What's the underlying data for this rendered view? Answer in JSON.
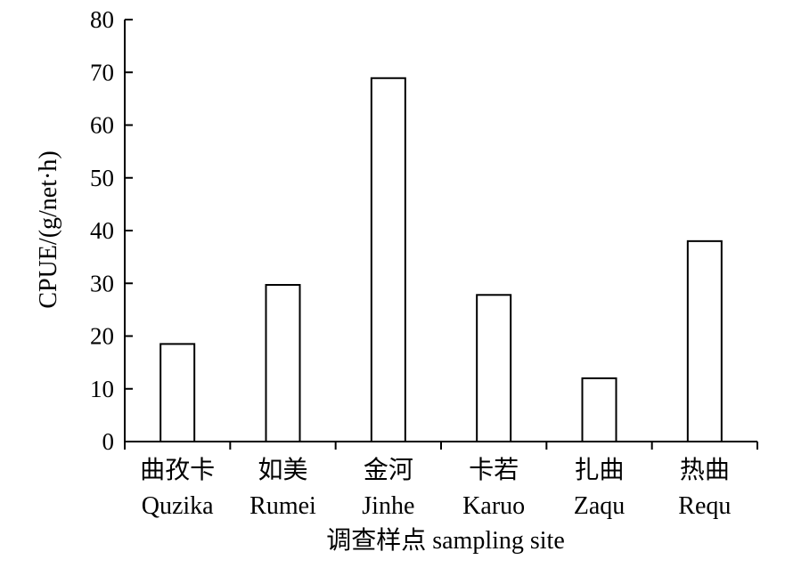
{
  "chart_data": {
    "type": "bar",
    "categories": [
      {
        "zh": "曲孜卡",
        "en": "Quzika"
      },
      {
        "zh": "如美",
        "en": "Rumei"
      },
      {
        "zh": "金河",
        "en": "Jinhe"
      },
      {
        "zh": "卡若",
        "en": "Karuo"
      },
      {
        "zh": "扎曲",
        "en": "Zaqu"
      },
      {
        "zh": "热曲",
        "en": "Requ"
      }
    ],
    "values": [
      18.5,
      29.7,
      68.9,
      27.8,
      12.0,
      38.0
    ],
    "title": "",
    "xlabel": "调查样点 sampling site",
    "ylabel": "CPUE/(g/net·h)",
    "ylim": [
      0,
      80
    ],
    "yticks": [
      0,
      10,
      20,
      30,
      40,
      50,
      60,
      70,
      80
    ],
    "grid": false,
    "legend": "none"
  },
  "colors": {
    "bar_fill": "#ffffff",
    "bar_stroke": "#000000",
    "axis": "#000000"
  }
}
